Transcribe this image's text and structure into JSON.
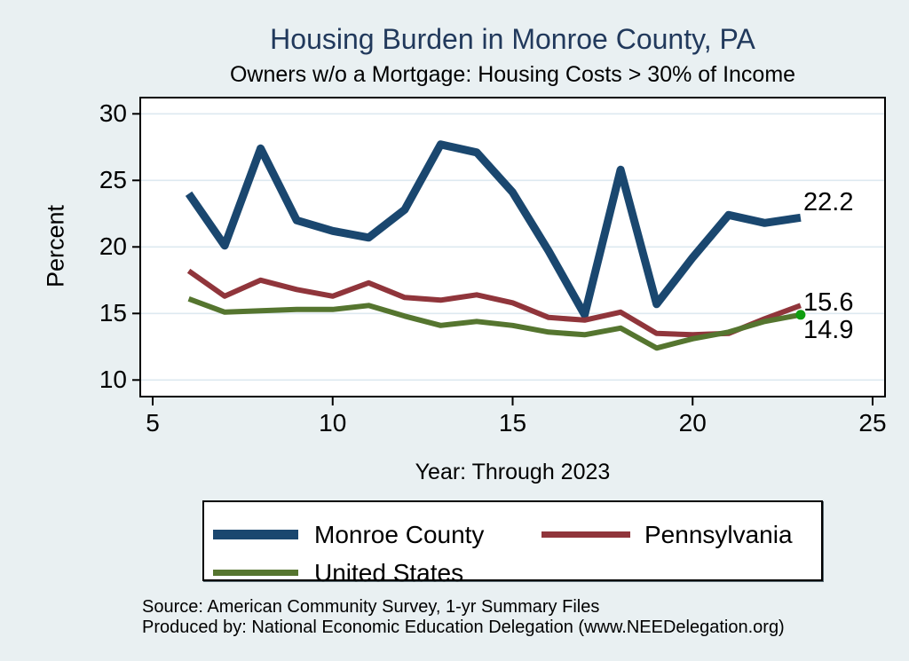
{
  "title": "Housing Burden in Monroe County, PA",
  "subtitle": "Owners w/o a Mortgage: Housing Costs > 30% of Income",
  "ylabel": "Percent",
  "xlabel": "Year: Through 2023",
  "source": {
    "line1": "Source: American Community Survey, 1-yr Summary Files",
    "line2": "Produced by: National Economic Education Delegation (www.NEEDelegation.org)"
  },
  "legend": {
    "monroe": "Monroe County",
    "pennsylvania": "Pennsylvania",
    "united_states": "United States"
  },
  "colors": {
    "background": "#e9f0f2",
    "plot_background": "#ffffff",
    "gridline": "#dde9f0",
    "axis": "#000000",
    "title": "#21395c",
    "monroe": "#1a476f",
    "pennsylvania": "#90353b",
    "united_states": "#55752f",
    "end_marker_green": "#0f9d0f"
  },
  "chart_data": {
    "type": "line",
    "title": "Housing Burden in Monroe County, PA",
    "subtitle": "Owners w/o a Mortgage: Housing Costs > 30% of Income",
    "xlabel": "Year: Through 2023",
    "ylabel": "Percent",
    "x": [
      6,
      7,
      8,
      9,
      10,
      11,
      12,
      13,
      14,
      15,
      16,
      17,
      18,
      19,
      20,
      21,
      22,
      23
    ],
    "x_ticks": [
      5,
      10,
      15,
      20,
      25
    ],
    "y_ticks": [
      10,
      15,
      20,
      25,
      30
    ],
    "xlim": [
      4.65,
      25.35
    ],
    "ylim": [
      8.75,
      31.2
    ],
    "grid": "horizontal",
    "legend_position": "bottom",
    "series": [
      {
        "name": "Monroe County",
        "color": "#1a476f",
        "stroke_width": 9,
        "values": [
          24.0,
          20.1,
          27.4,
          22.0,
          21.2,
          20.7,
          22.8,
          27.7,
          27.1,
          24.1,
          19.7,
          14.9,
          25.8,
          15.7,
          19.2,
          22.4,
          21.8,
          22.2
        ]
      },
      {
        "name": "Pennsylvania",
        "color": "#90353b",
        "stroke_width": 6,
        "values": [
          18.2,
          16.3,
          17.5,
          16.8,
          16.3,
          17.3,
          16.2,
          16.0,
          16.4,
          15.8,
          14.7,
          14.5,
          15.1,
          13.5,
          13.4,
          13.5,
          14.6,
          15.6
        ]
      },
      {
        "name": "United States",
        "color": "#55752f",
        "stroke_width": 6,
        "end_marker": true,
        "values": [
          16.1,
          15.1,
          15.2,
          15.3,
          15.3,
          15.6,
          14.8,
          14.1,
          14.4,
          14.1,
          13.6,
          13.4,
          13.9,
          12.4,
          13.1,
          13.6,
          14.4,
          14.9
        ]
      }
    ],
    "end_labels": [
      "22.2",
      "15.6",
      "14.9"
    ]
  }
}
